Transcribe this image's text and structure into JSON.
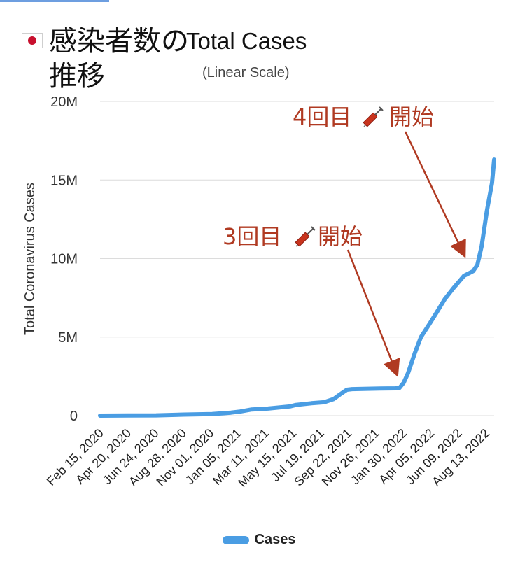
{
  "title": {
    "japanese": "感染者数の推移",
    "english": "Total Cases",
    "subtitle": "(Linear Scale)"
  },
  "colors": {
    "series": "#4a9de3",
    "annotation": "#b03a22",
    "grid": "#dcdcdc"
  },
  "chart_data": {
    "type": "line",
    "title": "Total Cases",
    "subtitle": "(Linear Scale)",
    "ylabel": "Total Coronavirus Cases",
    "xlabel": "",
    "ylim": [
      0,
      20000000
    ],
    "y_ticks": [
      {
        "value": 0,
        "label": "0"
      },
      {
        "value": 5000000,
        "label": "5M"
      },
      {
        "value": 10000000,
        "label": "10M"
      },
      {
        "value": 15000000,
        "label": "15M"
      },
      {
        "value": 20000000,
        "label": "20M"
      }
    ],
    "x_tick_labels": [
      "Feb 15, 2020",
      "Apr 20, 2020",
      "Jun 24, 2020",
      "Aug 28, 2020",
      "Nov 01, 2020",
      "Jan 05, 2021",
      "Mar 11, 2021",
      "May 15, 2021",
      "Jul 19, 2021",
      "Sep 22, 2021",
      "Nov 26, 2021",
      "Jan 30, 2022",
      "Apr 05, 2022",
      "Jun 09, 2022",
      "Aug 13, 2022"
    ],
    "grid": true,
    "legend": "bottom",
    "series": [
      {
        "name": "Cases",
        "points": [
          [
            "2020-02-15",
            0
          ],
          [
            "2020-04-20",
            11000
          ],
          [
            "2020-06-24",
            18000
          ],
          [
            "2020-08-28",
            66000
          ],
          [
            "2020-11-01",
            102000
          ],
          [
            "2020-12-15",
            190000
          ],
          [
            "2021-01-05",
            260000
          ],
          [
            "2021-02-01",
            390000
          ],
          [
            "2021-03-11",
            450000
          ],
          [
            "2021-05-01",
            590000
          ],
          [
            "2021-05-15",
            680000
          ],
          [
            "2021-06-20",
            790000
          ],
          [
            "2021-07-19",
            850000
          ],
          [
            "2021-08-10",
            1050000
          ],
          [
            "2021-08-25",
            1350000
          ],
          [
            "2021-09-10",
            1650000
          ],
          [
            "2021-09-22",
            1690000
          ],
          [
            "2021-11-26",
            1725000
          ],
          [
            "2022-01-01",
            1735000
          ],
          [
            "2022-01-10",
            1760000
          ],
          [
            "2022-01-20",
            2100000
          ],
          [
            "2022-01-30",
            2700000
          ],
          [
            "2022-02-15",
            4000000
          ],
          [
            "2022-03-01",
            5000000
          ],
          [
            "2022-03-20",
            5800000
          ],
          [
            "2022-04-05",
            6500000
          ],
          [
            "2022-04-25",
            7400000
          ],
          [
            "2022-05-15",
            8100000
          ],
          [
            "2022-06-09",
            8900000
          ],
          [
            "2022-06-30",
            9200000
          ],
          [
            "2022-07-10",
            9600000
          ],
          [
            "2022-07-20",
            10800000
          ],
          [
            "2022-08-01",
            13000000
          ],
          [
            "2022-08-13",
            14800000
          ],
          [
            "2022-08-18",
            16300000
          ]
        ]
      }
    ],
    "annotations": [
      {
        "label_prefix": "3回目",
        "label_suffix": "開始",
        "icon": "syringe-icon",
        "target_date": "2021-12-20",
        "target_value": 1750000
      },
      {
        "label_prefix": "4回目",
        "label_suffix": "開始",
        "icon": "syringe-icon",
        "target_date": "2022-05-25",
        "target_value": 8000000
      }
    ]
  },
  "legend": {
    "label": "Cases"
  }
}
